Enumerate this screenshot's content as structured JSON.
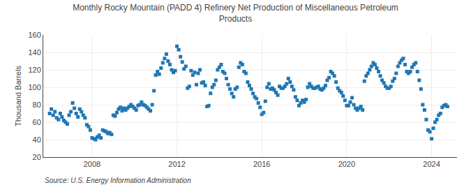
{
  "chart_data": {
    "type": "scatter",
    "title": "Monthly Rocky Mountain (PADD 4) Refinery Net Production of Miscellaneous Petroleum\nProducts",
    "ylabel": "Thousand Barrels",
    "annotations": [
      "Source: U.S. Energy Information Administration"
    ],
    "marker": "square",
    "grid": true,
    "xlim": [
      2005.7,
      2025.2
    ],
    "xticks": [
      2008,
      2012,
      2016,
      2020,
      2024
    ],
    "ylim": [
      20,
      160
    ],
    "yticks": [
      20,
      40,
      60,
      80,
      100,
      120,
      140,
      160
    ],
    "x": [
      2006.0,
      2006.083,
      2006.167,
      2006.25,
      2006.333,
      2006.417,
      2006.5,
      2006.583,
      2006.667,
      2006.75,
      2006.833,
      2006.917,
      2007.0,
      2007.083,
      2007.167,
      2007.25,
      2007.333,
      2007.417,
      2007.5,
      2007.583,
      2007.667,
      2007.75,
      2007.833,
      2007.917,
      2008.0,
      2008.083,
      2008.167,
      2008.25,
      2008.333,
      2008.417,
      2008.5,
      2008.583,
      2008.667,
      2008.75,
      2008.833,
      2008.917,
      2009.0,
      2009.083,
      2009.167,
      2009.25,
      2009.333,
      2009.417,
      2009.5,
      2009.583,
      2009.667,
      2009.75,
      2009.833,
      2009.917,
      2010.0,
      2010.083,
      2010.167,
      2010.25,
      2010.333,
      2010.417,
      2010.5,
      2010.583,
      2010.667,
      2010.75,
      2010.833,
      2010.917,
      2011.0,
      2011.083,
      2011.167,
      2011.25,
      2011.333,
      2011.417,
      2011.5,
      2011.583,
      2011.667,
      2011.75,
      2011.833,
      2011.917,
      2012.0,
      2012.083,
      2012.167,
      2012.25,
      2012.333,
      2012.417,
      2012.5,
      2012.583,
      2012.667,
      2012.75,
      2012.833,
      2012.917,
      2013.0,
      2013.083,
      2013.167,
      2013.25,
      2013.333,
      2013.417,
      2013.5,
      2013.583,
      2013.667,
      2013.75,
      2013.833,
      2013.917,
      2014.0,
      2014.083,
      2014.167,
      2014.25,
      2014.333,
      2014.417,
      2014.5,
      2014.583,
      2014.667,
      2014.75,
      2014.833,
      2014.917,
      2015.0,
      2015.083,
      2015.167,
      2015.25,
      2015.333,
      2015.417,
      2015.5,
      2015.583,
      2015.667,
      2015.75,
      2015.833,
      2015.917,
      2016.0,
      2016.083,
      2016.167,
      2016.25,
      2016.333,
      2016.417,
      2016.5,
      2016.583,
      2016.667,
      2016.75,
      2016.833,
      2016.917,
      2017.0,
      2017.083,
      2017.167,
      2017.25,
      2017.333,
      2017.417,
      2017.5,
      2017.583,
      2017.667,
      2017.75,
      2017.833,
      2017.917,
      2018.0,
      2018.083,
      2018.167,
      2018.25,
      2018.333,
      2018.417,
      2018.5,
      2018.583,
      2018.667,
      2018.75,
      2018.833,
      2018.917,
      2019.0,
      2019.083,
      2019.167,
      2019.25,
      2019.333,
      2019.417,
      2019.5,
      2019.583,
      2019.667,
      2019.75,
      2019.833,
      2019.917,
      2020.0,
      2020.083,
      2020.167,
      2020.25,
      2020.333,
      2020.417,
      2020.5,
      2020.583,
      2020.667,
      2020.75,
      2020.833,
      2020.917,
      2021.0,
      2021.083,
      2021.167,
      2021.25,
      2021.333,
      2021.417,
      2021.5,
      2021.583,
      2021.667,
      2021.75,
      2021.833,
      2021.917,
      2022.0,
      2022.083,
      2022.167,
      2022.25,
      2022.333,
      2022.417,
      2022.5,
      2022.583,
      2022.667,
      2022.75,
      2022.833,
      2022.917,
      2023.0,
      2023.083,
      2023.167,
      2023.25,
      2023.333,
      2023.417,
      2023.5,
      2023.583,
      2023.667,
      2023.75,
      2023.833,
      2023.917,
      2024.0,
      2024.083,
      2024.167,
      2024.25,
      2024.333,
      2024.417,
      2024.5,
      2024.583,
      2024.667,
      2024.75
    ],
    "values": [
      70,
      75,
      68,
      72,
      65,
      63,
      70,
      66,
      62,
      60,
      58,
      68,
      72,
      82,
      76,
      70,
      66,
      75,
      72,
      68,
      65,
      57,
      55,
      51,
      42,
      41,
      40,
      43,
      45,
      42,
      51,
      50,
      49,
      47,
      48,
      46,
      68,
      67,
      71,
      75,
      77,
      73,
      76,
      74,
      76,
      78,
      80,
      78,
      76,
      74,
      79,
      80,
      83,
      80,
      79,
      77,
      75,
      73,
      80,
      96,
      114,
      118,
      115,
      122,
      128,
      133,
      138,
      130,
      126,
      120,
      117,
      119,
      147,
      143,
      135,
      129,
      121,
      124,
      99,
      101,
      119,
      114,
      117,
      103,
      116,
      120,
      105,
      106,
      102,
      78,
      79,
      93,
      100,
      103,
      108,
      120,
      123,
      126,
      118,
      116,
      110,
      103,
      98,
      93,
      89,
      98,
      100,
      123,
      128,
      126,
      118,
      116,
      106,
      102,
      98,
      93,
      89,
      87,
      82,
      77,
      69,
      71,
      84,
      100,
      104,
      98,
      99,
      97,
      94,
      91,
      101,
      99,
      99,
      101,
      104,
      110,
      106,
      101,
      97,
      89,
      85,
      79,
      82,
      85,
      83,
      86,
      100,
      104,
      101,
      99,
      99,
      100,
      101,
      98,
      97,
      99,
      102,
      108,
      111,
      118,
      116,
      113,
      106,
      99,
      96,
      94,
      90,
      85,
      79,
      79,
      83,
      88,
      80,
      76,
      74,
      76,
      78,
      74,
      107,
      113,
      116,
      120,
      124,
      128,
      126,
      122,
      118,
      113,
      108,
      105,
      101,
      99,
      99,
      101,
      107,
      110,
      116,
      124,
      128,
      131,
      133,
      126,
      118,
      116,
      118,
      123,
      126,
      128,
      118,
      108,
      98,
      80,
      74,
      63,
      51,
      49,
      41,
      53,
      60,
      63,
      68,
      70,
      77,
      79,
      80,
      78
    ]
  }
}
